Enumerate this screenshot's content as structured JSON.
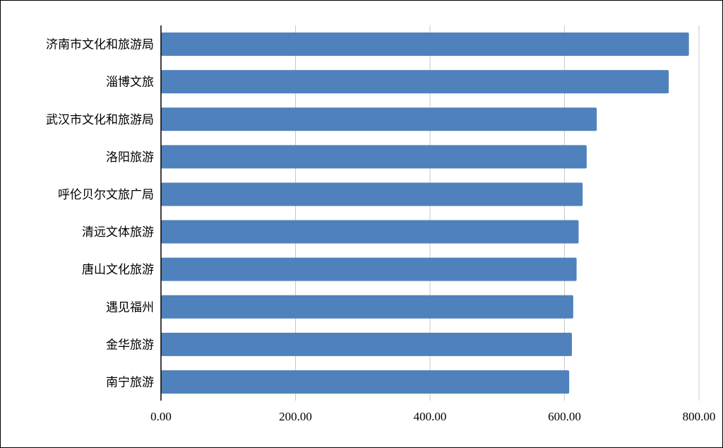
{
  "chart_data": {
    "type": "bar",
    "orientation": "horizontal",
    "categories": [
      "济南市文化和旅游局",
      "淄博文旅",
      "武汉市文化和旅游局",
      "洛阳旅游",
      "呼伦贝尔文旅广局",
      "清远文体旅游",
      "唐山文化旅游",
      "遇见福州",
      "金华旅游",
      "南宁旅游"
    ],
    "values": [
      785,
      755,
      648,
      633,
      627,
      621,
      618,
      613,
      611,
      607
    ],
    "xlim": [
      0,
      800
    ],
    "x_ticks": [
      "0.00",
      "200.00",
      "400.00",
      "600.00",
      "800.00"
    ],
    "title": "",
    "xlabel": "",
    "ylabel": "",
    "grid": "vertical",
    "legend": "none",
    "bar_color": "#4f81bd",
    "grid_color": "#c8c8c8",
    "axis_color": "#000000"
  }
}
